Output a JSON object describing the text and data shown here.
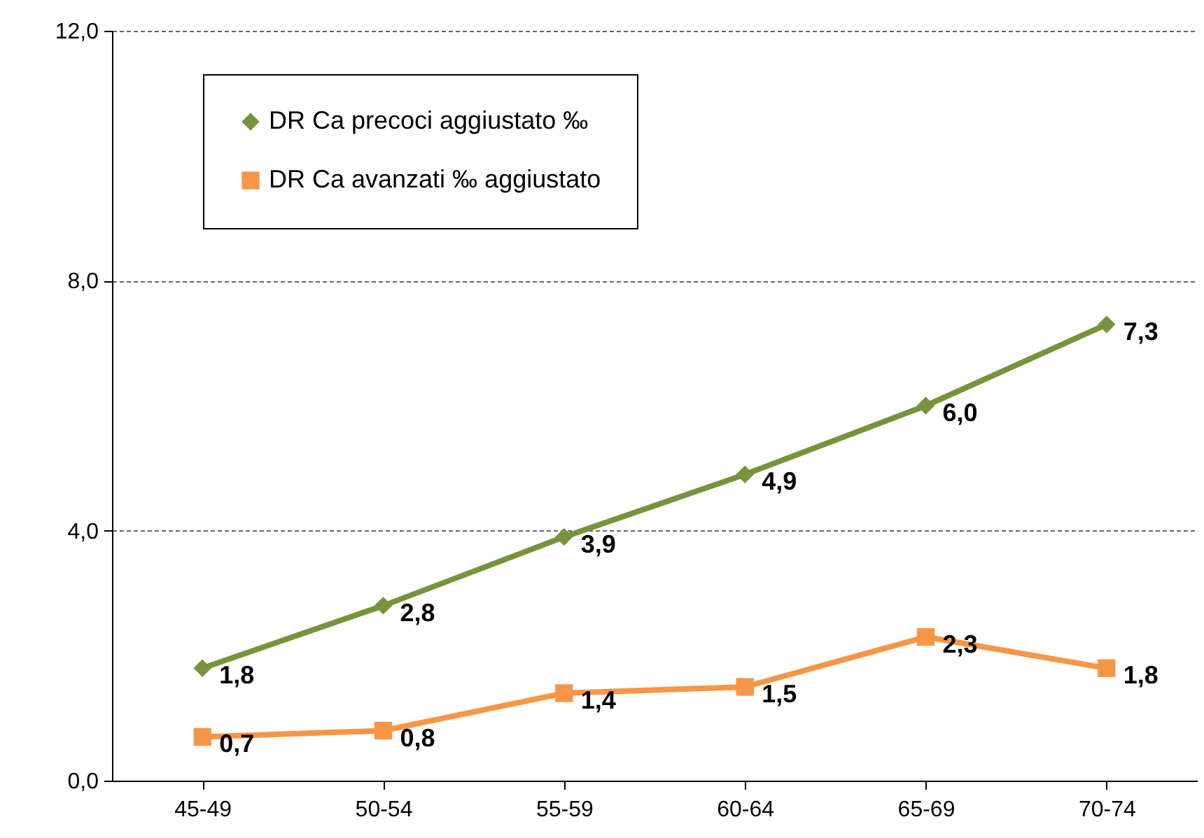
{
  "chart_data": {
    "type": "line",
    "categories": [
      "45-49",
      "50-54",
      "55-59",
      "60-64",
      "65-69",
      "70-74"
    ],
    "series": [
      {
        "name": "DR Ca precoci aggiustato ‰",
        "color": "#77933c",
        "marker": "diamond",
        "values": [
          1.8,
          2.8,
          3.9,
          4.9,
          6.0,
          7.3
        ],
        "value_labels": [
          "1,8",
          "2,8",
          "3,9",
          "4,9",
          "6,0",
          "7,3"
        ]
      },
      {
        "name": "DR Ca avanzati ‰ aggiustato",
        "color": "#f79646",
        "marker": "square",
        "values": [
          0.7,
          0.8,
          1.4,
          1.5,
          2.3,
          1.8
        ],
        "value_labels": [
          "0,7",
          "0,8",
          "1,4",
          "1,5",
          "2,3",
          "1,8"
        ]
      }
    ],
    "ylim": [
      0,
      12
    ],
    "yticks": [
      {
        "value": 0,
        "label": "0,0"
      },
      {
        "value": 4,
        "label": "4,0"
      },
      {
        "value": 8,
        "label": "8,0"
      },
      {
        "value": 12,
        "label": "12,0"
      }
    ],
    "grid": "y",
    "legend": "top left",
    "line_style": "solid"
  }
}
